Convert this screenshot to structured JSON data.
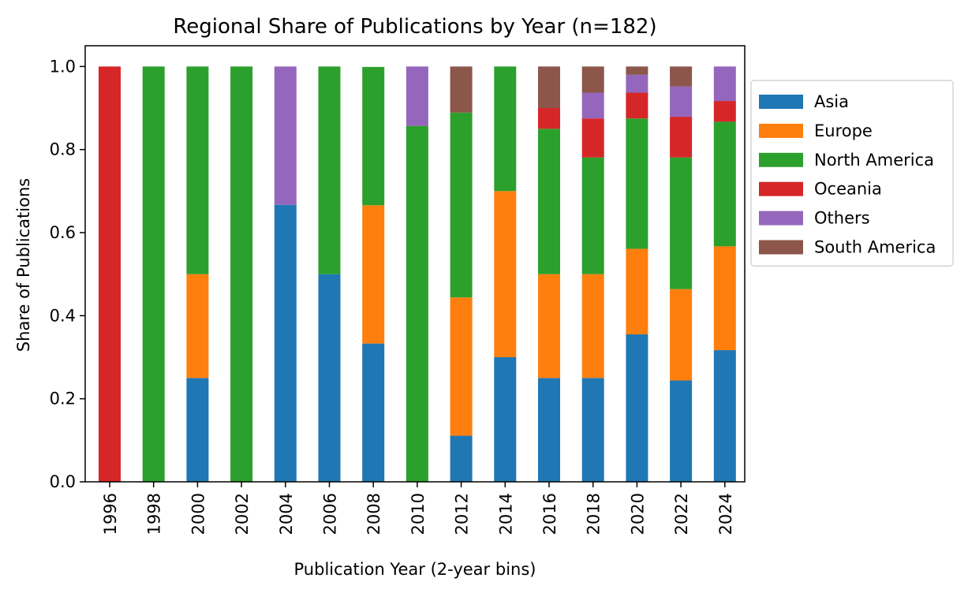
{
  "chart_data": {
    "type": "bar",
    "stacked": true,
    "title": "Regional Share of Publications by Year (n=182)",
    "xlabel": "Publication Year (2-year bins)",
    "ylabel": "Share of Publications",
    "ylim": [
      0,
      1.05
    ],
    "yticks": [
      "0.0",
      "0.2",
      "0.4",
      "0.6",
      "0.8",
      "1.0"
    ],
    "categories": [
      "1996",
      "1998",
      "2000",
      "2002",
      "2004",
      "2006",
      "2008",
      "2010",
      "2012",
      "2014",
      "2016",
      "2018",
      "2020",
      "2022",
      "2024"
    ],
    "series": [
      {
        "name": "Asia",
        "color": "#1f77b4",
        "values": [
          0,
          0,
          0.25,
          0,
          0.667,
          0.5,
          0.333,
          0,
          0.111,
          0.3,
          0.25,
          0.25,
          0.355,
          0.244,
          0.317
        ]
      },
      {
        "name": "Europe",
        "color": "#ff7f0e",
        "values": [
          0,
          0,
          0.25,
          0,
          0,
          0,
          0.333,
          0,
          0.333,
          0.4,
          0.25,
          0.25,
          0.206,
          0.22,
          0.25
        ]
      },
      {
        "name": "North America",
        "color": "#2ca02c",
        "values": [
          0,
          1,
          0.5,
          1,
          0,
          0.5,
          0.333,
          0.857,
          0.445,
          0.3,
          0.35,
          0.281,
          0.314,
          0.317,
          0.3
        ]
      },
      {
        "name": "Oceania",
        "color": "#d62728",
        "values": [
          1,
          0,
          0,
          0,
          0,
          0,
          0,
          0,
          0,
          0,
          0.05,
          0.094,
          0.062,
          0.098,
          0.05
        ]
      },
      {
        "name": "Others",
        "color": "#9467bd",
        "values": [
          0,
          0,
          0,
          0,
          0.333,
          0,
          0,
          0.143,
          0,
          0,
          0,
          0.062,
          0.043,
          0.073,
          0.083
        ]
      },
      {
        "name": "South America",
        "color": "#8c564b",
        "values": [
          0,
          0,
          0,
          0,
          0,
          0,
          0,
          0,
          0.111,
          0,
          0.1,
          0.063,
          0.02,
          0.048,
          0
        ]
      }
    ],
    "legend": "outside-right",
    "grid": false
  }
}
